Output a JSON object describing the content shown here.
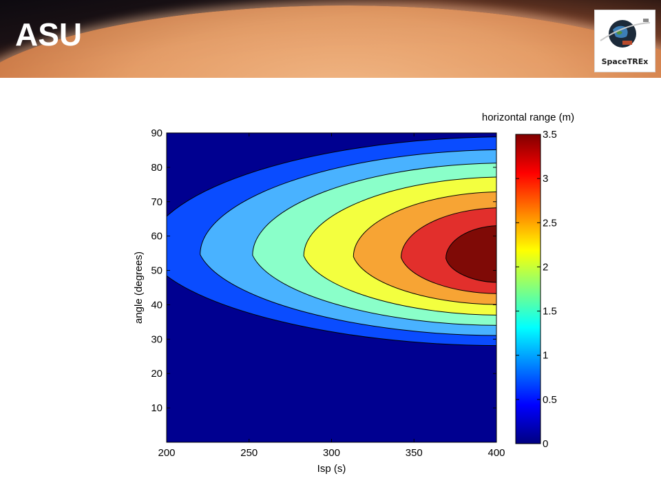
{
  "header": {
    "logo_left_text": "ASU",
    "logo_right_text": "SpaceTREx",
    "colors": {
      "space": "#0d0a10",
      "planet_limb": "#e49a63",
      "asu_logo": "#ffffff"
    }
  },
  "chart_data": {
    "type": "contourf",
    "xlabel": "Isp (s)",
    "ylabel": "angle (degrees)",
    "colorbar_label": "horizontal range (m)",
    "xlim": [
      200,
      400
    ],
    "ylim": [
      0,
      90
    ],
    "xticks": [
      200,
      250,
      300,
      350,
      400
    ],
    "yticks": [
      10,
      20,
      30,
      40,
      50,
      60,
      70,
      80,
      90
    ],
    "colorbar_ticks": [
      "0",
      "0.5",
      "1",
      "1.5",
      "2",
      "2.5",
      "3",
      "3.5"
    ],
    "clim": [
      0,
      3.5
    ],
    "colormap": "jet",
    "contour_levels": [
      0,
      0.5,
      1.0,
      1.5,
      2.0,
      2.5,
      3.0
    ],
    "level_colors": [
      "#000090",
      "#0a4cff",
      "#49b2ff",
      "#8affc9",
      "#f3ff3f",
      "#f7a434",
      "#e22f2c",
      "#7f0a06"
    ],
    "peak": {
      "x": 400,
      "y": 53,
      "value": 3.5
    },
    "grid": false
  }
}
